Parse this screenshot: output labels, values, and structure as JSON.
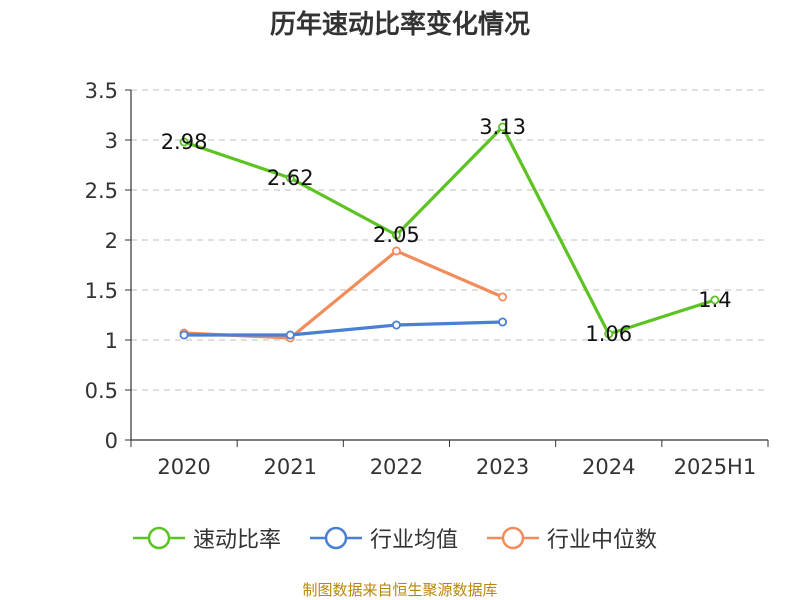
{
  "title": "历年速动比率变化情况",
  "footer": "制图数据来自恒生聚源数据库",
  "chart_data": {
    "type": "line",
    "categories": [
      "2020",
      "2021",
      "2022",
      "2023",
      "2024",
      "2025H1"
    ],
    "ylim": [
      0,
      3.5
    ],
    "yticks": [
      0,
      0.5,
      1,
      1.5,
      2,
      2.5,
      3,
      3.5
    ],
    "ytick_labels": [
      "0",
      "0.5",
      "1",
      "1.5",
      "2",
      "2.5",
      "3",
      "3.5"
    ],
    "grid": true,
    "legend_position": "bottom",
    "series": [
      {
        "name": "速动比率",
        "color": "#5cc322",
        "values": [
          2.98,
          2.62,
          2.05,
          3.13,
          1.06,
          1.4
        ],
        "labels": [
          "2.98",
          "2.62",
          "2.05",
          "3.13",
          "1.06",
          "1.4"
        ]
      },
      {
        "name": "行业均值",
        "color": "#4a7fd6",
        "values": [
          1.05,
          1.05,
          1.15,
          1.18,
          null,
          null
        ]
      },
      {
        "name": "行业中位数",
        "color": "#f28c5a",
        "values": [
          1.07,
          1.02,
          1.89,
          1.43,
          null,
          null
        ]
      }
    ]
  }
}
